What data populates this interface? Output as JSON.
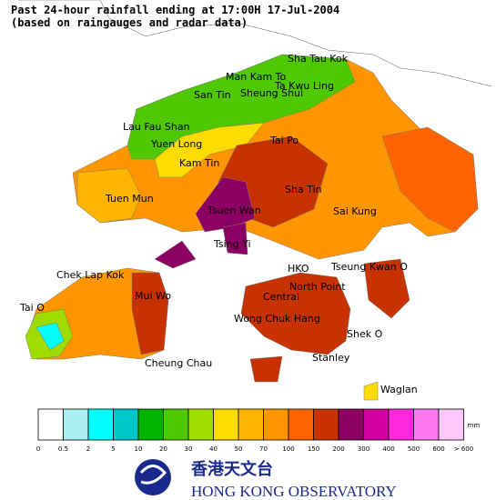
{
  "header": {
    "title_lines": [
      "Past 24-hour rainfall ending at 17:00H 17-Jul-2004",
      "(based on raingauges and radar data)"
    ]
  },
  "places": [
    "Sha Tau Kok",
    "Man Kam To",
    "Ta Kwu Ling",
    "Sheung Shui",
    "San Tin",
    "Lau Fau Shan",
    "Yuen Long",
    "Kam Tin",
    "Tai Po",
    "Tuen Mun",
    "Sha Tin",
    "Tsuen Wan",
    "Sai Kung",
    "Tsing Yi",
    "Chek Lap Kok",
    "HKO",
    "Tseung Kwan O",
    "North Point",
    "Mui Wo",
    "Central",
    "Tai O",
    "Wong Chuk Hang",
    "Shek O",
    "Cheung Chau",
    "Stanley",
    "Waglan"
  ],
  "legend": {
    "unit": "mm",
    "labels": [
      "0",
      "0.5",
      "2",
      "5",
      "10",
      "20",
      "30",
      "40",
      "50",
      "70",
      "100",
      "150",
      "200",
      "300",
      "400",
      "500",
      "600",
      "> 600"
    ],
    "colors": [
      "#ffffff",
      "#aaf0f0",
      "#00ffff",
      "#00c8c8",
      "#00b400",
      "#50c800",
      "#a0dc00",
      "#ffdc00",
      "#ffb400",
      "#ff9600",
      "#ff6400",
      "#c83200",
      "#8c0064",
      "#d200a0",
      "#ff28dc",
      "#ff78f0",
      "#ffc8fa"
    ]
  },
  "logo": {
    "chinese": "香港天文台",
    "english": "HONG KONG OBSERVATORY"
  }
}
